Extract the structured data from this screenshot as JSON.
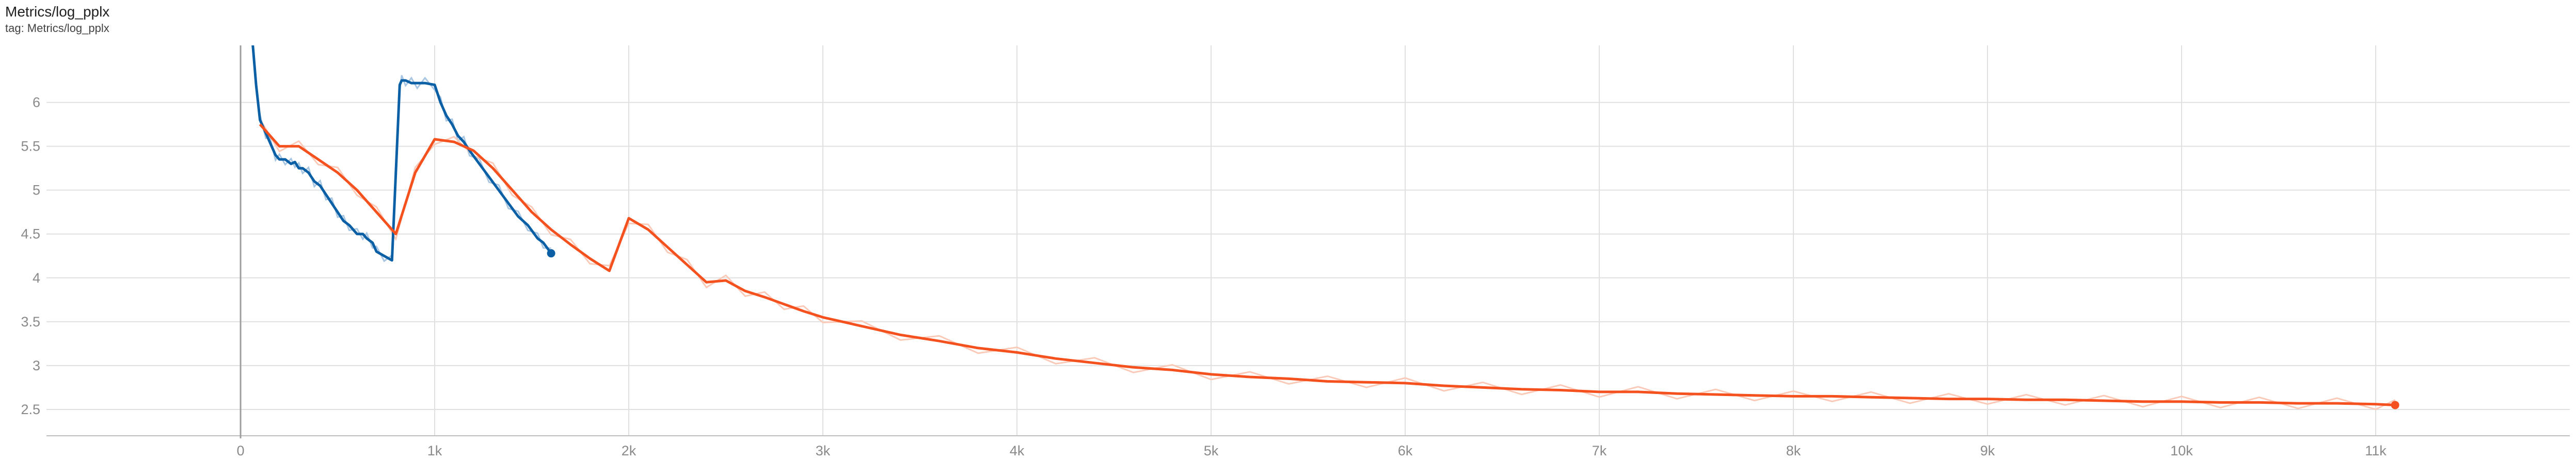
{
  "card": {
    "title": "Metrics/log_pplx",
    "tag": "tag: Metrics/log_pplx"
  },
  "chart_data": {
    "type": "line",
    "title": "Metrics/log_pplx",
    "xlabel": "",
    "ylabel": "",
    "xlim": [
      -1000,
      12000
    ],
    "ylim": [
      2.2,
      6.65
    ],
    "grid": true,
    "x_ticks": [
      0,
      1000,
      2000,
      3000,
      4000,
      5000,
      6000,
      7000,
      8000,
      9000,
      10000,
      11000
    ],
    "x_tick_labels": [
      "0",
      "1k",
      "2k",
      "3k",
      "4k",
      "5k",
      "6k",
      "7k",
      "8k",
      "9k",
      "10k",
      "11k"
    ],
    "y_ticks": [
      2.5,
      3,
      3.5,
      4,
      4.5,
      5,
      5.5,
      6
    ],
    "y_tick_labels": [
      "2.5",
      "3",
      "3.5",
      "4",
      "4.5",
      "5",
      "5.5",
      "6"
    ],
    "series": [
      {
        "color": "#0b5fa5",
        "raw_color": "#a8c6e2",
        "x": [
          50,
          80,
          100,
          130,
          150,
          180,
          200,
          230,
          260,
          280,
          300,
          320,
          350,
          380,
          410,
          440,
          470,
          500,
          530,
          560,
          600,
          630,
          650,
          680,
          700,
          740,
          780,
          820,
          830,
          850,
          880,
          910,
          950,
          1000,
          1030,
          1060,
          1090,
          1120,
          1150,
          1180,
          1230,
          1280,
          1330,
          1380,
          1430,
          1480,
          1530,
          1560,
          1600
        ],
        "y": [
          7.0,
          6.2,
          5.8,
          5.65,
          5.55,
          5.4,
          5.35,
          5.35,
          5.3,
          5.32,
          5.25,
          5.25,
          5.2,
          5.1,
          5.05,
          4.95,
          4.85,
          4.75,
          4.65,
          4.6,
          4.5,
          4.5,
          4.45,
          4.4,
          4.3,
          4.25,
          4.2,
          6.2,
          6.25,
          6.25,
          6.22,
          6.22,
          6.22,
          6.2,
          6.0,
          5.85,
          5.75,
          5.62,
          5.55,
          5.45,
          5.3,
          5.15,
          5.0,
          4.85,
          4.7,
          4.6,
          4.45,
          4.4,
          4.28
        ]
      },
      {
        "color": "#f4511e",
        "raw_color": "#fbc9b8",
        "x": [
          100,
          200,
          300,
          400,
          500,
          600,
          700,
          800,
          900,
          1000,
          1100,
          1200,
          1300,
          1400,
          1500,
          1600,
          1700,
          1800,
          1900,
          2000,
          2100,
          2200,
          2300,
          2400,
          2500,
          2600,
          2700,
          2800,
          2900,
          3000,
          3200,
          3400,
          3600,
          3800,
          4000,
          4200,
          4400,
          4600,
          4800,
          5000,
          5200,
          5400,
          5600,
          5800,
          6000,
          6200,
          6400,
          6600,
          6800,
          7000,
          7200,
          7400,
          7600,
          7800,
          8000,
          8200,
          8400,
          8600,
          8800,
          9000,
          9200,
          9400,
          9600,
          9800,
          10000,
          10200,
          10400,
          10600,
          10800,
          11000,
          11100
        ],
        "y": [
          5.75,
          5.5,
          5.5,
          5.35,
          5.2,
          5.0,
          4.75,
          4.5,
          5.2,
          5.58,
          5.55,
          5.45,
          5.25,
          5.0,
          4.75,
          4.55,
          4.38,
          4.22,
          4.08,
          4.68,
          4.55,
          4.35,
          4.15,
          3.95,
          3.97,
          3.85,
          3.78,
          3.7,
          3.62,
          3.55,
          3.45,
          3.35,
          3.28,
          3.2,
          3.15,
          3.08,
          3.03,
          2.98,
          2.95,
          2.9,
          2.87,
          2.85,
          2.82,
          2.81,
          2.8,
          2.77,
          2.75,
          2.73,
          2.72,
          2.7,
          2.7,
          2.68,
          2.67,
          2.66,
          2.65,
          2.65,
          2.64,
          2.63,
          2.62,
          2.62,
          2.61,
          2.61,
          2.6,
          2.59,
          2.59,
          2.58,
          2.58,
          2.57,
          2.57,
          2.56,
          2.55
        ]
      }
    ]
  }
}
